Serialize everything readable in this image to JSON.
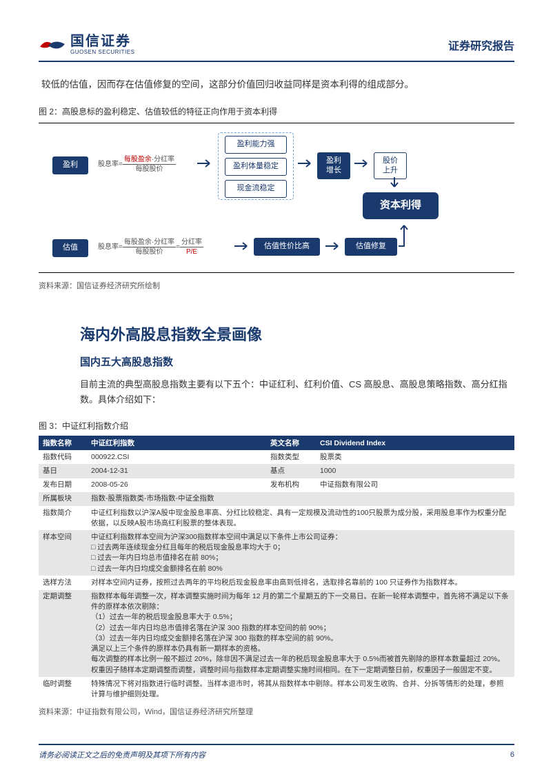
{
  "header": {
    "logo_cn": "国信证券",
    "logo_en": "GUOSEN SECURITIES",
    "report_title": "证券研究报告"
  },
  "intro_para": "较低的估值，因而存在估值修复的空间，这部分价值回归收益同样是资本利得的组成部分。",
  "fig2": {
    "caption": "图 2：高股息标的盈利稳定、估值较低的特征正向作用于资本利得",
    "source": "资料来源：国信证券经济研究所绘制",
    "boxes": {
      "profit": "盈利",
      "valuation": "估值",
      "ability": "盈利能力强",
      "volume": "盈利体量稳定",
      "cashflow": "现金流稳定",
      "profit_growth": "盈利\n增长",
      "price_up": "股价\n上升",
      "capital_gain": "资本利得",
      "cost_perf": "估值性价比高",
      "repair": "估值修复"
    },
    "formula1": {
      "prefix": "股息率=",
      "num_red": "每股盈余",
      "num_plain": "·分红率",
      "den": "每股股价"
    },
    "formula2": {
      "prefix": "股息率=",
      "num": "每股盈余·分红率",
      "den": "每股股价",
      "eq": "=",
      "num2": "分红率",
      "den2_red": "P/E"
    },
    "colors": {
      "navy": "#1a3a6e",
      "outline": "#1a3a6e",
      "dashed": "#6fa8dc",
      "red": "#c00000",
      "arrow": "#1a3a6e"
    }
  },
  "h2": "海内外高股息指数全景画像",
  "h3": "国内五大高股息指数",
  "para2": "目前主流的典型高股息指数主要有以下五个：中证红利、红利价值、CS 高股息、高股息策略指数、高分红指数。具体介绍如下：",
  "tbl3": {
    "caption": "图 3：中证红利指数介绍",
    "source": "资料来源：中证指数有限公司，Wind，国信证券经济研究所整理",
    "head_col1": "指数名称",
    "head_col2": "中证红利指数",
    "head_col3": "英文名称",
    "head_col4": "CSI Dividend Index",
    "rows": [
      {
        "bg": "white",
        "k1": "指数代码",
        "v1": "000922.CSI",
        "k2": "指数类型",
        "v2": "股票类"
      },
      {
        "bg": "grey",
        "k1": "基日",
        "v1": "2004-12-31",
        "k2": "基点",
        "v2": "1000"
      },
      {
        "bg": "white",
        "k1": "发布日期",
        "v1": "2008-05-26",
        "k2": "发布机构",
        "v2": "中证指数有限公司"
      },
      {
        "bg": "grey",
        "k1": "所属板块",
        "span": "指数-股票指数类-市场指数-中证全指数"
      },
      {
        "bg": "white",
        "k1": "指数简介",
        "span": "中证红利指数以沪深A股中现金股息率高、分红比较稳定、具有一定规模及流动性的100只股票为成分股，采用股息率作为权重分配依据，以反映A股市场高红利股票的整体表现。"
      },
      {
        "bg": "grey",
        "k1": "样本空间",
        "span": "中证红利指数样本空间为沪深300指数样本空间中满足以下条件上市公司证券：\n□ 过去两年连续现金分红且每年的税后现金股息率均大于 0；\n□ 过去一年内日均总市值排名在前 80%；\n□ 过去一年内日均成交金额排名在前 80%"
      },
      {
        "bg": "white",
        "k1": "选样方法",
        "span": "对样本空间内证券，按照过去两年的平均税后现金股息率由高到低排名，选取排名靠前的 100 只证券作为指数样本。"
      },
      {
        "bg": "grey",
        "k1": "定期调整",
        "span": "指数样本每年调整一次，样本调整实施时间为每年 12 月的第二个星期五的下一交易日。在新一轮样本调整中，首先将不满足以下条件的原样本依次剔除：\n（1）过去一年的税后现金股息率大于 0.5%；\n（2）过去一年内日均总市值排名落在沪深 300 指数的样本空间的前 90%；\n（3）过去一年内日均成交金额排名落在沪深 300 指数的样本空间的前 90%。\n满足以上三个条件的原样本仍具有新一期样本的资格。\n每次调整的样本比例一般不超过 20%，除非因不满足过去一年的税后现金股息率大于 0.5%而被首先剔除的原样本数量超过 20%。\n权重因子随样本定期调整而调整，调整时间与指数样本定期调整实施时间相同。在下一定期调整日前，权重因子一般固定不变。"
      },
      {
        "bg": "white",
        "k1": "临时调整",
        "span": "特殊情况下将对指数进行临时调整。当样本退市时，将其从指数样本中剔除。样本公司发生收购、合并、分拆等情形的处理，参照计算与维护细则处理。"
      }
    ]
  },
  "footer": {
    "text": "请务必阅读正文之后的免责声明及其项下所有内容",
    "page": "6"
  }
}
